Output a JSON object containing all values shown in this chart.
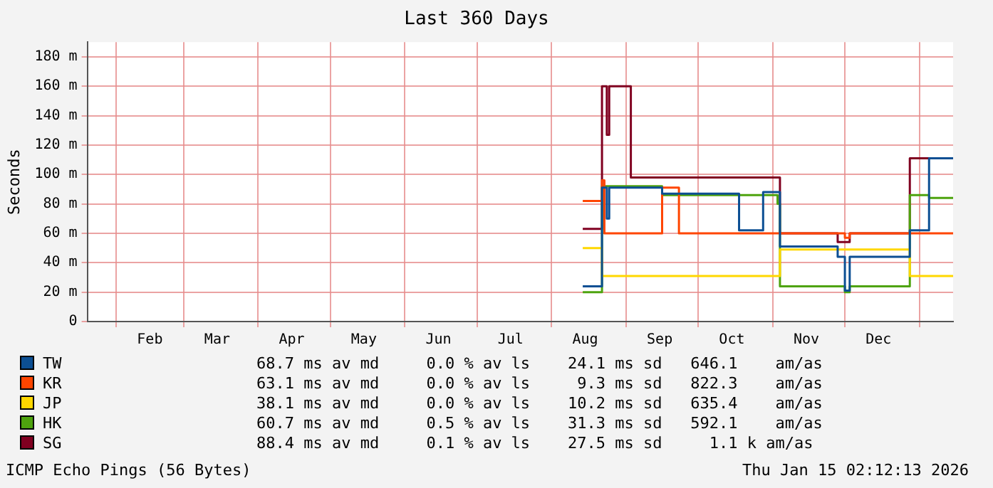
{
  "chart_data": {
    "type": "step",
    "title": "Last 360 Days",
    "ylabel": "Seconds",
    "xlim": [
      "2025-01-20",
      "2026-01-15"
    ],
    "xticks": [
      {
        "value": "2025-02-01",
        "label": null
      },
      {
        "value": "2025-02-15",
        "label": "Feb"
      },
      {
        "value": "2025-03-01",
        "label": null
      },
      {
        "value": "2025-03-15",
        "label": "Mar"
      },
      {
        "value": "2025-04-01",
        "label": null
      },
      {
        "value": "2025-04-15",
        "label": "Apr"
      },
      {
        "value": "2025-05-01",
        "label": null
      },
      {
        "value": "2025-05-15",
        "label": "May"
      },
      {
        "value": "2025-06-01",
        "label": null
      },
      {
        "value": "2025-06-15",
        "label": "Jun"
      },
      {
        "value": "2025-07-01",
        "label": null
      },
      {
        "value": "2025-07-15",
        "label": "Jul"
      },
      {
        "value": "2025-08-01",
        "label": null
      },
      {
        "value": "2025-08-15",
        "label": "Aug"
      },
      {
        "value": "2025-09-01",
        "label": null
      },
      {
        "value": "2025-09-15",
        "label": "Sep"
      },
      {
        "value": "2025-10-01",
        "label": null
      },
      {
        "value": "2025-10-15",
        "label": "Oct"
      },
      {
        "value": "2025-11-01",
        "label": null
      },
      {
        "value": "2025-11-15",
        "label": "Nov"
      },
      {
        "value": "2025-12-01",
        "label": null
      },
      {
        "value": "2025-12-15",
        "label": "Dec"
      },
      {
        "value": "2026-01-01",
        "label": null
      }
    ],
    "ylim": [
      0,
      190
    ],
    "yticks": [
      0,
      {
        "value": 20,
        "label": "20 m"
      },
      {
        "value": 40,
        "label": "40 m"
      },
      {
        "value": 60,
        "label": "60 m"
      },
      {
        "value": 80,
        "label": "80 m"
      },
      {
        "value": 100,
        "label": "100 m"
      },
      {
        "value": 120,
        "label": "120 m"
      },
      {
        "value": 140,
        "label": "140 m"
      },
      {
        "value": 160,
        "label": "160 m"
      },
      {
        "value": 180,
        "label": "180 m"
      }
    ],
    "grid": true,
    "legend": "bottom",
    "series": [
      {
        "name": "TW",
        "color": "#0c4f93",
        "x": [
          "2025-08-14",
          "2025-08-22",
          "2025-08-24",
          "2025-08-25",
          "2025-09-16",
          "2025-10-18",
          "2025-10-28",
          "2025-11-04",
          "2025-11-28",
          "2025-12-01",
          "2025-12-03",
          "2025-12-28",
          "2026-01-05",
          "2026-01-15"
        ],
        "values": [
          24,
          91,
          70,
          91,
          87,
          62,
          88,
          51,
          44,
          21,
          44,
          62,
          111,
          111
        ]
      },
      {
        "name": "KR",
        "color": "#ff4500",
        "x": [
          "2025-08-14",
          "2025-08-22",
          "2025-08-23",
          "2025-09-16",
          "2025-09-23",
          "2025-12-01",
          "2025-12-03",
          "2026-01-15"
        ],
        "values": [
          82,
          96,
          60,
          91,
          60,
          57,
          60,
          60
        ]
      },
      {
        "name": "JP",
        "color": "#ffd700",
        "x": [
          "2025-08-14",
          "2025-08-22",
          "2025-11-04",
          "2025-12-28",
          "2026-01-15"
        ],
        "values": [
          50,
          31,
          49,
          31,
          31
        ]
      },
      {
        "name": "HK",
        "color": "#4ea30e",
        "x": [
          "2025-08-14",
          "2025-08-22",
          "2025-09-16",
          "2025-11-03",
          "2025-11-04",
          "2025-12-01",
          "2025-12-03",
          "2025-12-28",
          "2026-01-05",
          "2026-01-15"
        ],
        "values": [
          20,
          92,
          86,
          80,
          24,
          20,
          24,
          86,
          84,
          84
        ]
      },
      {
        "name": "SG",
        "color": "#800020",
        "x": [
          "2025-08-14",
          "2025-08-22",
          "2025-08-24",
          "2025-08-25",
          "2025-09-03",
          "2025-11-04",
          "2025-11-28",
          "2025-12-03",
          "2025-12-28",
          "2026-01-15"
        ],
        "values": [
          63,
          160,
          127,
          160,
          98,
          60,
          54,
          60,
          111,
          111
        ]
      }
    ],
    "annotations": [
      "68.7 ms av md     0.0 % av ls    24.1 ms sd   646.1    am/as",
      "63.1 ms av md     0.0 % av ls     9.3 ms sd   822.3    am/as",
      "38.1 ms av md     0.0 % av ls    10.2 ms sd   635.4    am/as",
      "60.7 ms av md     0.5 % av ls    31.3 ms sd   592.1    am/as",
      "88.4 ms av md     0.1 % av ls    27.5 ms sd     1.1 k am/as",
      "ICMP Echo Pings (56 Bytes)",
      "Thu Jan 15 02:12:13 2026"
    ]
  }
}
